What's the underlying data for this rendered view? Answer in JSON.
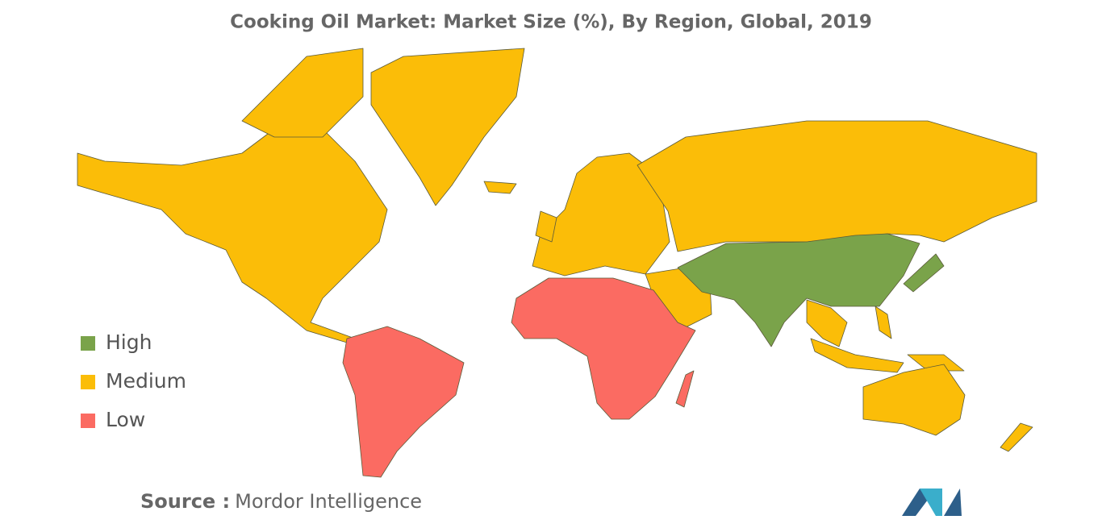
{
  "title": "Cooking Oil Market: Market Size (%), By Region, Global, 2019",
  "legend": {
    "items": [
      {
        "label": "High",
        "color": "#7aa34a"
      },
      {
        "label": "Medium",
        "color": "#fbbd08"
      },
      {
        "label": "Low",
        "color": "#fb6b62"
      }
    ]
  },
  "source": {
    "label": "Source :",
    "text": "Mordor Intelligence"
  }
}
